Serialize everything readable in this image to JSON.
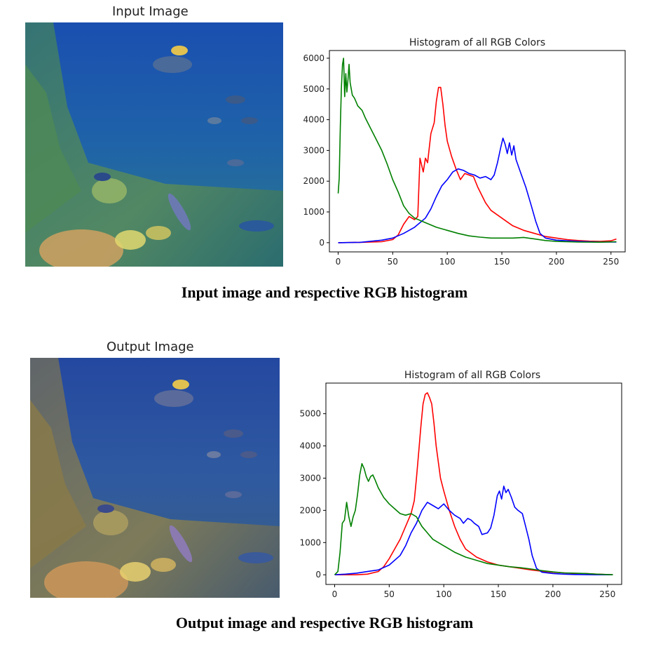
{
  "panels": [
    {
      "image_title": "Input Image",
      "caption": "Input image and respective RGB histogram"
    },
    {
      "image_title": "Output Image",
      "caption": "Output image and respective RGB histogram"
    }
  ],
  "chart_data": [
    {
      "type": "line",
      "title": "Histogram of all RGB Colors",
      "xlabel": "",
      "ylabel": "",
      "xlim": [
        -8,
        263
      ],
      "ylim": [
        -300,
        6250
      ],
      "xticks": [
        0,
        50,
        100,
        150,
        200,
        250
      ],
      "yticks": [
        0,
        1000,
        2000,
        3000,
        4000,
        5000,
        6000
      ],
      "grid": false,
      "series": [
        {
          "color": "#ff0000",
          "points": [
            [
              0,
              0
            ],
            [
              20,
              10
            ],
            [
              40,
              30
            ],
            [
              50,
              100
            ],
            [
              55,
              250
            ],
            [
              60,
              600
            ],
            [
              65,
              850
            ],
            [
              70,
              750
            ],
            [
              73,
              850
            ],
            [
              75,
              2750
            ],
            [
              78,
              2300
            ],
            [
              80,
              2750
            ],
            [
              82,
              2600
            ],
            [
              85,
              3550
            ],
            [
              88,
              3900
            ],
            [
              90,
              4600
            ],
            [
              92,
              5050
            ],
            [
              94,
              5050
            ],
            [
              96,
              4500
            ],
            [
              98,
              3800
            ],
            [
              100,
              3300
            ],
            [
              104,
              2800
            ],
            [
              108,
              2400
            ],
            [
              112,
              2050
            ],
            [
              116,
              2250
            ],
            [
              120,
              2200
            ],
            [
              124,
              2150
            ],
            [
              128,
              1800
            ],
            [
              135,
              1300
            ],
            [
              140,
              1050
            ],
            [
              150,
              800
            ],
            [
              160,
              550
            ],
            [
              170,
              400
            ],
            [
              180,
              300
            ],
            [
              190,
              200
            ],
            [
              200,
              150
            ],
            [
              210,
              100
            ],
            [
              220,
              70
            ],
            [
              230,
              50
            ],
            [
              240,
              40
            ],
            [
              250,
              60
            ],
            [
              255,
              120
            ]
          ]
        },
        {
          "color": "#0000ff",
          "points": [
            [
              0,
              0
            ],
            [
              20,
              10
            ],
            [
              40,
              80
            ],
            [
              50,
              150
            ],
            [
              60,
              300
            ],
            [
              70,
              500
            ],
            [
              80,
              800
            ],
            [
              85,
              1100
            ],
            [
              90,
              1500
            ],
            [
              95,
              1850
            ],
            [
              100,
              2050
            ],
            [
              105,
              2300
            ],
            [
              110,
              2400
            ],
            [
              115,
              2350
            ],
            [
              120,
              2250
            ],
            [
              125,
              2200
            ],
            [
              130,
              2100
            ],
            [
              135,
              2150
            ],
            [
              140,
              2050
            ],
            [
              143,
              2200
            ],
            [
              146,
              2600
            ],
            [
              149,
              3100
            ],
            [
              151,
              3400
            ],
            [
              153,
              3200
            ],
            [
              155,
              2900
            ],
            [
              157,
              3250
            ],
            [
              159,
              2850
            ],
            [
              161,
              3150
            ],
            [
              163,
              2700
            ],
            [
              167,
              2300
            ],
            [
              172,
              1800
            ],
            [
              177,
              1200
            ],
            [
              181,
              700
            ],
            [
              185,
              300
            ],
            [
              190,
              150
            ],
            [
              200,
              80
            ],
            [
              220,
              40
            ],
            [
              240,
              20
            ],
            [
              255,
              20
            ]
          ]
        },
        {
          "color": "#008000",
          "points": [
            [
              0,
              1600
            ],
            [
              1,
              2100
            ],
            [
              2,
              3800
            ],
            [
              3,
              5050
            ],
            [
              4,
              5800
            ],
            [
              5,
              6000
            ],
            [
              6,
              4750
            ],
            [
              7,
              5500
            ],
            [
              8,
              4900
            ],
            [
              9,
              5300
            ],
            [
              10,
              5800
            ],
            [
              11,
              5200
            ],
            [
              13,
              4800
            ],
            [
              15,
              4700
            ],
            [
              18,
              4450
            ],
            [
              22,
              4300
            ],
            [
              25,
              4050
            ],
            [
              30,
              3700
            ],
            [
              35,
              3350
            ],
            [
              40,
              3000
            ],
            [
              45,
              2550
            ],
            [
              50,
              2050
            ],
            [
              55,
              1650
            ],
            [
              60,
              1200
            ],
            [
              65,
              950
            ],
            [
              70,
              800
            ],
            [
              80,
              650
            ],
            [
              90,
              500
            ],
            [
              100,
              400
            ],
            [
              110,
              300
            ],
            [
              120,
              220
            ],
            [
              130,
              180
            ],
            [
              140,
              150
            ],
            [
              160,
              150
            ],
            [
              170,
              170
            ],
            [
              180,
              120
            ],
            [
              190,
              70
            ],
            [
              200,
              40
            ],
            [
              220,
              20
            ],
            [
              240,
              15
            ],
            [
              255,
              30
            ]
          ]
        }
      ]
    },
    {
      "type": "line",
      "title": "Histogram of all RGB Colors",
      "xlabel": "",
      "ylabel": "",
      "xlim": [
        -8,
        263
      ],
      "ylim": [
        -300,
        5950
      ],
      "xticks": [
        0,
        50,
        100,
        150,
        200,
        250
      ],
      "yticks": [
        0,
        1000,
        2000,
        3000,
        4000,
        5000
      ],
      "grid": false,
      "series": [
        {
          "color": "#ff0000",
          "points": [
            [
              0,
              0
            ],
            [
              20,
              0
            ],
            [
              30,
              20
            ],
            [
              40,
              100
            ],
            [
              45,
              250
            ],
            [
              50,
              500
            ],
            [
              55,
              800
            ],
            [
              60,
              1100
            ],
            [
              65,
              1500
            ],
            [
              70,
              1900
            ],
            [
              73,
              2300
            ],
            [
              75,
              3000
            ],
            [
              77,
              3800
            ],
            [
              79,
              4600
            ],
            [
              81,
              5300
            ],
            [
              83,
              5600
            ],
            [
              85,
              5650
            ],
            [
              87,
              5500
            ],
            [
              89,
              5300
            ],
            [
              91,
              4700
            ],
            [
              93,
              4000
            ],
            [
              95,
              3500
            ],
            [
              97,
              3000
            ],
            [
              100,
              2600
            ],
            [
              105,
              2000
            ],
            [
              110,
              1500
            ],
            [
              115,
              1100
            ],
            [
              120,
              800
            ],
            [
              130,
              550
            ],
            [
              140,
              400
            ],
            [
              150,
              300
            ],
            [
              160,
              250
            ],
            [
              170,
              200
            ],
            [
              180,
              150
            ],
            [
              190,
              110
            ],
            [
              200,
              80
            ],
            [
              210,
              60
            ],
            [
              220,
              40
            ],
            [
              230,
              40
            ],
            [
              240,
              20
            ],
            [
              255,
              0
            ]
          ]
        },
        {
          "color": "#0000ff",
          "points": [
            [
              0,
              0
            ],
            [
              10,
              20
            ],
            [
              20,
              50
            ],
            [
              30,
              100
            ],
            [
              40,
              150
            ],
            [
              50,
              300
            ],
            [
              60,
              600
            ],
            [
              65,
              900
            ],
            [
              70,
              1300
            ],
            [
              75,
              1600
            ],
            [
              80,
              2000
            ],
            [
              85,
              2250
            ],
            [
              90,
              2150
            ],
            [
              95,
              2050
            ],
            [
              100,
              2200
            ],
            [
              105,
              2000
            ],
            [
              110,
              1850
            ],
            [
              115,
              1750
            ],
            [
              118,
              1600
            ],
            [
              122,
              1750
            ],
            [
              125,
              1700
            ],
            [
              128,
              1600
            ],
            [
              132,
              1500
            ],
            [
              135,
              1250
            ],
            [
              140,
              1300
            ],
            [
              143,
              1450
            ],
            [
              146,
              1850
            ],
            [
              149,
              2450
            ],
            [
              151,
              2600
            ],
            [
              153,
              2350
            ],
            [
              155,
              2750
            ],
            [
              157,
              2550
            ],
            [
              159,
              2650
            ],
            [
              162,
              2400
            ],
            [
              165,
              2100
            ],
            [
              168,
              2000
            ],
            [
              172,
              1900
            ],
            [
              175,
              1500
            ],
            [
              178,
              1100
            ],
            [
              181,
              600
            ],
            [
              185,
              200
            ],
            [
              190,
              80
            ],
            [
              200,
              40
            ],
            [
              210,
              20
            ],
            [
              220,
              10
            ],
            [
              240,
              0
            ],
            [
              255,
              0
            ]
          ]
        },
        {
          "color": "#008000",
          "points": [
            [
              0,
              0
            ],
            [
              3,
              100
            ],
            [
              5,
              700
            ],
            [
              7,
              1600
            ],
            [
              9,
              1700
            ],
            [
              11,
              2250
            ],
            [
              13,
              1800
            ],
            [
              15,
              1500
            ],
            [
              17,
              1800
            ],
            [
              19,
              2000
            ],
            [
              21,
              2500
            ],
            [
              23,
              3100
            ],
            [
              25,
              3450
            ],
            [
              27,
              3300
            ],
            [
              29,
              3050
            ],
            [
              31,
              2900
            ],
            [
              33,
              3050
            ],
            [
              35,
              3100
            ],
            [
              37,
              2950
            ],
            [
              40,
              2700
            ],
            [
              45,
              2400
            ],
            [
              50,
              2200
            ],
            [
              55,
              2050
            ],
            [
              60,
              1900
            ],
            [
              65,
              1850
            ],
            [
              70,
              1900
            ],
            [
              75,
              1800
            ],
            [
              80,
              1500
            ],
            [
              85,
              1300
            ],
            [
              90,
              1100
            ],
            [
              100,
              900
            ],
            [
              110,
              700
            ],
            [
              120,
              550
            ],
            [
              130,
              450
            ],
            [
              140,
              350
            ],
            [
              150,
              300
            ],
            [
              160,
              250
            ],
            [
              170,
              220
            ],
            [
              180,
              180
            ],
            [
              190,
              130
            ],
            [
              200,
              90
            ],
            [
              210,
              60
            ],
            [
              220,
              50
            ],
            [
              230,
              40
            ],
            [
              240,
              20
            ],
            [
              255,
              0
            ]
          ]
        }
      ]
    }
  ]
}
